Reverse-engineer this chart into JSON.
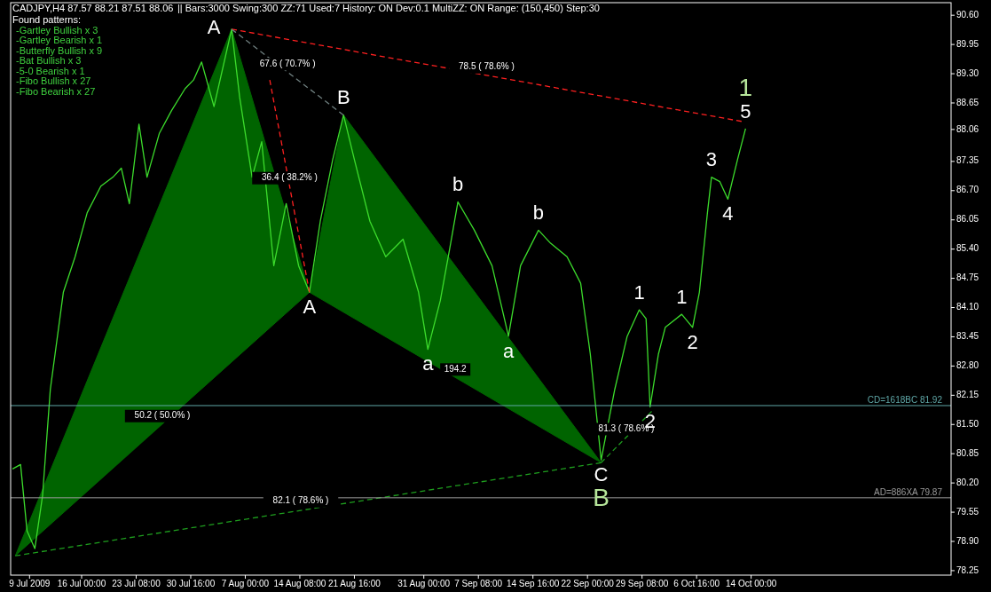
{
  "chart_data": {
    "type": "line",
    "title": "CADJPY,H4  87.57 88.21 87.51 88.06",
    "subtitle": "|| Bars:3000   Swing:300   ZZ:71   Used:7   History: ON   Dev:0.1   MultiZZ: ON   Range: (150,450)   Step:30",
    "xlim": [
      "2009-07-06T11:00",
      "2009-11-09T21:00"
    ],
    "ylim": [
      78.15,
      90.88
    ],
    "xticks": [
      {
        "value": "2009-07-09",
        "label": "9 Jul 2009"
      },
      {
        "value": "2009-07-16T00:00",
        "label": "16 Jul 00:00"
      },
      {
        "value": "2009-07-23T08:00",
        "label": "23 Jul 08:00"
      },
      {
        "value": "2009-07-30T16:00",
        "label": "30 Jul 16:00"
      },
      {
        "value": "2009-08-07T00:00",
        "label": "7 Aug 00:00"
      },
      {
        "value": "2009-08-14T08:00",
        "label": "14 Aug 08:00"
      },
      {
        "value": "2009-08-21T16:00",
        "label": "21 Aug 16:00"
      },
      {
        "value": "2009-08-31T00:00",
        "label": "31 Aug 00:00"
      },
      {
        "value": "2009-09-07T08:00",
        "label": "7 Sep 08:00"
      },
      {
        "value": "2009-09-14T16:00",
        "label": "14 Sep 16:00"
      },
      {
        "value": "2009-09-22T00:00",
        "label": "22 Sep 00:00"
      },
      {
        "value": "2009-09-29T08:00",
        "label": "29 Sep 08:00"
      },
      {
        "value": "2009-10-06T16:00",
        "label": "6 Oct 16:00"
      },
      {
        "value": "2009-10-14T00:00",
        "label": "14 Oct 00:00"
      }
    ],
    "yticks": [
      {
        "value": 90.6,
        "label": "90.60"
      },
      {
        "value": 89.95,
        "label": "89.95"
      },
      {
        "value": 89.3,
        "label": "89.30"
      },
      {
        "value": 88.65,
        "label": "88.65"
      },
      {
        "value": 88.06,
        "label": "88.06"
      },
      {
        "value": 87.35,
        "label": "87.35"
      },
      {
        "value": 86.7,
        "label": "86.70"
      },
      {
        "value": 86.05,
        "label": "86.05"
      },
      {
        "value": 85.4,
        "label": "85.40"
      },
      {
        "value": 84.75,
        "label": "84.75"
      },
      {
        "value": 84.1,
        "label": "84.10"
      },
      {
        "value": 83.45,
        "label": "83.45"
      },
      {
        "value": 82.8,
        "label": "82.80"
      },
      {
        "value": 82.15,
        "label": "82.15"
      },
      {
        "value": 81.5,
        "label": "81.50"
      },
      {
        "value": 80.85,
        "label": "80.85"
      },
      {
        "value": 80.2,
        "label": "80.20"
      },
      {
        "value": 79.55,
        "label": "79.55"
      },
      {
        "value": 78.9,
        "label": "78.90"
      },
      {
        "value": 78.25,
        "label": "78.25"
      }
    ],
    "series": [
      {
        "type": "area",
        "color": "#006400",
        "x": [
          "2009-07-07T02:00",
          "2009-08-05T04:00",
          "2009-08-15T15:00",
          "2009-07-07T02:00"
        ],
        "values": [
          78.58,
          90.29,
          84.44,
          78.58
        ]
      },
      {
        "type": "area",
        "color": "#006400",
        "x": [
          "2009-08-15T15:00",
          "2009-08-20T05:00",
          "2009-09-23T20:00",
          "2009-08-15T15:00"
        ],
        "values": [
          84.44,
          88.38,
          80.65,
          84.44
        ]
      },
      {
        "type": "line",
        "color": "#ff2020",
        "line_style": "dashed",
        "x": [
          "2009-08-05T04:00",
          "2009-10-12T17:00"
        ],
        "values": [
          90.29,
          88.24
        ]
      },
      {
        "type": "line",
        "color": "#708080",
        "line_style": "dashed",
        "x": [
          "2009-08-05T04:00",
          "2009-08-20T05:00"
        ],
        "values": [
          90.29,
          88.38
        ]
      },
      {
        "type": "line",
        "color": "#ff2020",
        "line_style": "dashed",
        "x": [
          "2009-08-10T07:00",
          "2009-08-15T15:00"
        ],
        "values": [
          89.16,
          84.44
        ]
      },
      {
        "type": "line",
        "color": "#1e9e1e",
        "line_style": "dashed",
        "x": [
          "2009-07-07T02:00",
          "2009-09-23T20:00"
        ],
        "values": [
          78.58,
          80.65
        ]
      },
      {
        "type": "line",
        "color": "#1e9e1e",
        "line_style": "dashed",
        "x": [
          "2009-09-23T20:00",
          "2009-09-30T15:00"
        ],
        "values": [
          80.65,
          81.79
        ]
      },
      {
        "color": "#3cdc2c",
        "x": [
          "2009-07-06T17:00",
          "2009-07-07T19:00",
          "2009-07-08T16:00",
          "2009-07-09T17:00",
          "2009-07-10T18:00",
          "2009-07-11T19:00",
          "2009-07-13T13:00",
          "2009-07-15T03:00",
          "2009-07-16T18:00",
          "2009-07-18T14:00",
          "2009-07-20T05:00",
          "2009-07-21T08:00",
          "2009-07-22T10:00",
          "2009-07-23T17:00",
          "2009-07-24T19:00",
          "2009-07-26T11:00",
          "2009-07-28T02:00",
          "2009-07-29T22:00",
          "2009-07-31T01:00",
          "2009-08-01T03:00",
          "2009-08-02T19:00",
          "2009-08-05T04:00",
          "2009-08-06T06:00",
          "2009-08-07T22:00",
          "2009-08-09T05:00",
          "2009-08-10T20:00",
          "2009-08-12T12:00",
          "2009-08-14T04:00",
          "2009-08-15T15:00",
          "2009-08-17T02:00",
          "2009-08-18T18:00",
          "2009-08-20T05:00",
          "2009-08-21T16:00",
          "2009-08-23T18:00",
          "2009-08-25T21:00",
          "2009-08-28T05:00",
          "2009-08-30T07:00",
          "2009-08-31T13:00",
          "2009-09-02T05:00",
          "2009-09-03T12:00",
          "2009-09-04T14:00",
          "2009-09-06T19:00",
          "2009-09-09T04:00",
          "2009-09-10T20:00",
          "2009-09-11T09:00",
          "2009-09-13T00:00",
          "2009-09-15T10:00",
          "2009-09-17T01:00",
          "2009-09-19T06:00",
          "2009-09-21T02:00",
          "2009-09-22T09:00",
          "2009-09-23T20:00",
          "2009-09-25T16:00",
          "2009-09-27T08:00",
          "2009-09-28T23:00",
          "2009-09-29T21:00",
          "2009-09-30T10:00",
          "2009-10-01T13:00",
          "2009-10-02T11:00",
          "2009-10-04T16:00",
          "2009-10-06T03:00",
          "2009-10-07T01:00",
          "2009-10-08T03:00",
          "2009-10-08T16:00",
          "2009-10-09T19:00",
          "2009-10-10T21:00",
          "2009-10-12T04:00",
          "2009-10-13T06:00"
        ],
        "values": [
          80.51,
          80.61,
          79.13,
          78.74,
          79.92,
          82.28,
          84.44,
          85.23,
          86.21,
          86.8,
          87.0,
          87.2,
          86.41,
          88.18,
          87.0,
          87.98,
          88.48,
          88.97,
          89.16,
          89.56,
          88.57,
          90.29,
          88.77,
          87.0,
          87.79,
          85.03,
          86.41,
          85.03,
          84.44,
          86.02,
          87.39,
          88.38,
          87.39,
          86.02,
          85.23,
          85.62,
          84.44,
          83.17,
          84.25,
          85.43,
          86.45,
          85.82,
          85.03,
          83.85,
          83.46,
          85.03,
          85.82,
          85.53,
          85.23,
          84.64,
          83.07,
          80.71,
          82.28,
          83.46,
          84.05,
          83.85,
          81.89,
          83.07,
          83.66,
          83.95,
          83.66,
          84.44,
          86.21,
          87.0,
          86.9,
          86.51,
          87.39,
          88.08
        ]
      }
    ],
    "ref_lines": [
      {
        "axis": "y",
        "value": 81.92,
        "label": "CD=1618BC  81.92",
        "color": "#5fa7a7"
      },
      {
        "axis": "y",
        "value": 79.87,
        "label": "AD=886XA  79.87",
        "color": "#9a9a9a"
      }
    ],
    "annotations": [
      "Found patterns:",
      "-Gartley Bullish x 3",
      "-Gartley Bearish x 1",
      "-Butterfly Bullish x 9",
      "-Bat Bullish x 3",
      "-5-0 Bearish x 1",
      "-Fibo Bullish x 27",
      "-Fibo Bearish x 27",
      {
        "text": "78.5 ( 78.6% )",
        "x": "2009-09-08T10:30",
        "y": 89.265
      },
      {
        "text": "67.6 ( 70.7% )",
        "x": "2009-08-12T16:30",
        "y": 89.335
      },
      {
        "text": "36.4 ( 38.2% )",
        "x": "2009-08-12T23:00",
        "y": 86.8
      },
      {
        "text": "82.1 ( 78.6% )",
        "x": "2009-08-14T11:00",
        "y": 79.615
      },
      {
        "text": "81.3 ( 78.6% )",
        "x": "2009-09-27T05:30",
        "y": 81.22
      },
      {
        "text": "50.2 ( 50.0% )",
        "x": "2009-07-26T20:30",
        "y": 81.51
      },
      {
        "text": "194.2",
        "x": "2009-09-04T05:30",
        "y": 82.545
      },
      {
        "text": "A",
        "x": "2009-08-05T04:00",
        "y": 90.29
      },
      {
        "text": "B",
        "x": "2009-08-20T05:00",
        "y": 88.38
      },
      {
        "text": "A",
        "x": "2009-08-15T15:00",
        "y": 84.44
      },
      {
        "text": "a",
        "x": "2009-08-31T13:00",
        "y": 83.17
      },
      {
        "text": "b",
        "x": "2009-09-04T14:00",
        "y": 86.45
      },
      {
        "text": "b",
        "x": "2009-09-15T10:00",
        "y": 85.82
      },
      {
        "text": "a",
        "x": "2009-09-11T09:00",
        "y": 83.46
      },
      {
        "text": "C",
        "x": "2009-09-23T20:00",
        "y": 80.71
      },
      {
        "text": "B",
        "x": "2009-09-23T20:00",
        "y": 80.71
      },
      {
        "text": "1",
        "x": "2009-09-28T23:00",
        "y": 84.05
      },
      {
        "text": "2",
        "x": "2009-09-30T10:00",
        "y": 81.89
      },
      {
        "text": "1",
        "x": "2009-10-04T16:00",
        "y": 83.95
      },
      {
        "text": "2",
        "x": "2009-10-06T03:00",
        "y": 83.66
      },
      {
        "text": "3",
        "x": "2009-10-08T16:00",
        "y": 87.0
      },
      {
        "text": "4",
        "x": "2009-10-10T21:00",
        "y": 86.51
      },
      {
        "text": "5",
        "x": "2009-10-13T06:00",
        "y": 88.08
      },
      {
        "text": "1",
        "x": "2009-10-13T06:00",
        "y": 88.08
      }
    ]
  }
}
